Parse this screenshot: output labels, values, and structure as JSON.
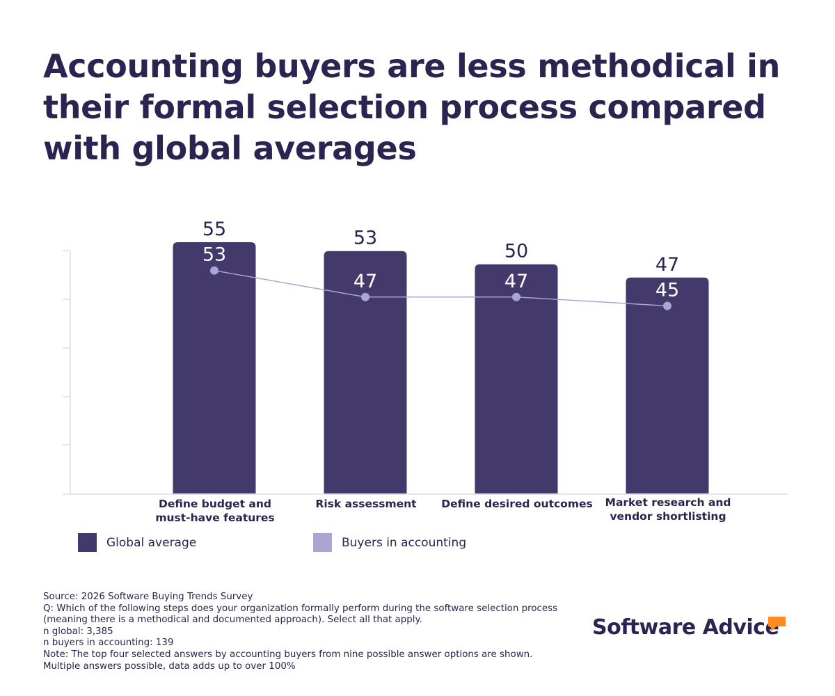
{
  "title": "Accounting buyers are less methodical in their formal selection process compared with global averages",
  "colors": {
    "global": "#433a6b",
    "accounting": "#aba5d2",
    "text": "#2b2450",
    "axis": "#e6e6ea",
    "logo_accent": "#ff8a1f"
  },
  "chart_data": {
    "type": "bar",
    "categories": [
      [
        "Define budget and",
        "must-have features"
      ],
      [
        "Risk assessment"
      ],
      [
        "Define desired outcomes"
      ],
      [
        "Market research and",
        "vendor shortlisting"
      ]
    ],
    "series": [
      {
        "name": "Global average",
        "type": "bar",
        "values": [
          55,
          53,
          50,
          47
        ]
      },
      {
        "name": "Buyers in accounting",
        "type": "line",
        "values": [
          53,
          47,
          47,
          45
        ]
      }
    ],
    "ylim": [
      0,
      55
    ],
    "grid": false,
    "legend_position": "bottom-left"
  },
  "legend": {
    "global_label": "Global average",
    "accounting_label": "Buyers in accounting"
  },
  "notes": {
    "source": "Source: 2026 Software Buying Trends Survey",
    "question": "Q: Which of the following steps does your organization formally perform during the software selection process (meaning there is a methodical and documented approach). Select all that apply.",
    "n_global": "n global: 3,385",
    "n_accounting": "n buyers in accounting: 139",
    "note": "Note: The top four selected answers by accounting buyers from nine possible answer options are shown. Multiple answers possible, data adds up to over 100%"
  },
  "logo": {
    "text": "Software Advice"
  }
}
